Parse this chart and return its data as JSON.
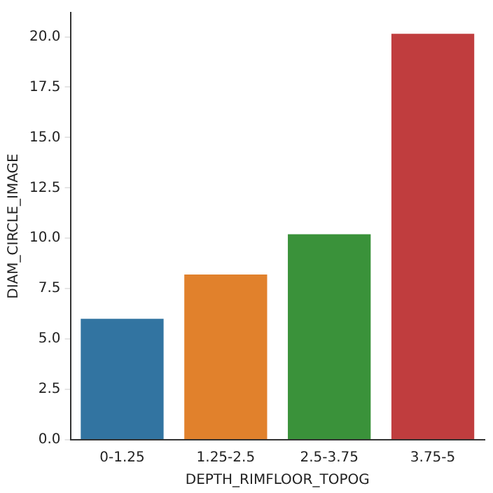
{
  "chart_data": {
    "type": "bar",
    "xlabel": "DEPTH_RIMFLOOR_TOPOG",
    "ylabel": "DIAM_CIRCLE_IMAGE",
    "categories": [
      "0-1.25",
      "1.25-2.5",
      "2.5-3.75",
      "3.75-5"
    ],
    "values": [
      6.0,
      8.2,
      10.2,
      20.15
    ],
    "colors": [
      "#3274a1",
      "#e1812c",
      "#3a923a",
      "#c03d3e"
    ],
    "ylim": [
      0,
      21.2
    ],
    "yticks": [
      {
        "value": 0,
        "label": "0.0"
      },
      {
        "value": 2.5,
        "label": "2.5"
      },
      {
        "value": 5,
        "label": "5.0"
      },
      {
        "value": 7.5,
        "label": "7.5"
      },
      {
        "value": 10,
        "label": "10.0"
      },
      {
        "value": 12.5,
        "label": "12.5"
      },
      {
        "value": 15,
        "label": "15.0"
      },
      {
        "value": 17.5,
        "label": "17.5"
      },
      {
        "value": 20,
        "label": "20.0"
      }
    ],
    "grid": false,
    "legend": false
  }
}
